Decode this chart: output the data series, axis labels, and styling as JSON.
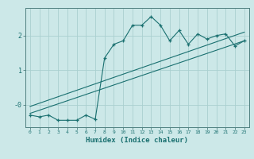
{
  "xlabel": "Humidex (Indice chaleur)",
  "bg_color": "#cce8e8",
  "line_color": "#1a7070",
  "grid_color": "#aad0d0",
  "x_data": [
    0,
    1,
    2,
    3,
    4,
    5,
    6,
    7,
    8,
    9,
    10,
    11,
    12,
    13,
    14,
    15,
    16,
    17,
    18,
    19,
    20,
    21,
    22,
    23
  ],
  "y_data": [
    -0.3,
    -0.35,
    -0.3,
    -0.45,
    -0.45,
    -0.45,
    -0.3,
    -0.42,
    1.35,
    1.75,
    1.85,
    2.3,
    2.3,
    2.55,
    2.3,
    1.85,
    2.15,
    1.75,
    2.05,
    1.9,
    2.0,
    2.05,
    1.7,
    1.85
  ],
  "line1_x": [
    0,
    23
  ],
  "line1_y": [
    -0.25,
    1.85
  ],
  "line2_x": [
    0,
    23
  ],
  "line2_y": [
    -0.05,
    2.1
  ],
  "ylim": [
    -0.65,
    2.8
  ],
  "xlim": [
    -0.5,
    23.5
  ],
  "yticks": [
    0.0,
    1.0,
    2.0
  ],
  "ytick_labels": [
    "-0",
    "1",
    "2"
  ],
  "xticks": [
    0,
    1,
    2,
    3,
    4,
    5,
    6,
    7,
    8,
    9,
    10,
    11,
    12,
    13,
    14,
    15,
    16,
    17,
    18,
    19,
    20,
    21,
    22,
    23
  ]
}
